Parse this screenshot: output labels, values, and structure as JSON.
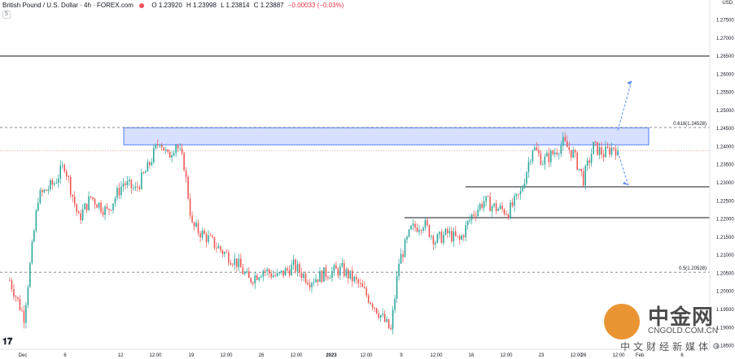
{
  "header": {
    "title": "British Pound / U.S. Dollar · 4h · FOREX.com",
    "open": "O 1.23920",
    "high": "H 1.23998",
    "low": "L 1.23814",
    "close": "C 1.23887",
    "change": "−0.00033 (−0.03%)",
    "sub_label": "5"
  },
  "currency_label": "USD",
  "watermark": {
    "brand": "中金网",
    "url": "CNGOLD.COM.CN",
    "tagline": "中文财经新媒体"
  },
  "colors": {
    "up": "#26a69a",
    "down": "#ef5350",
    "zone_fill": "#c9d6ff",
    "zone_stroke": "#2962ff",
    "line": "#131722",
    "dashed": "#787b86",
    "arrow": "#5b8def",
    "last_price": "#ef5350"
  },
  "chart_data": {
    "type": "candlestick",
    "title": "British Pound / U.S. Dollar · 4h · FOREX.com",
    "ylim": [
      1.184,
      1.2805
    ],
    "y_ticks": [
      "1.27500",
      "1.27000",
      "1.26500",
      "1.26000",
      "1.25500",
      "1.25000",
      "1.24500",
      "1.24000",
      "1.23500",
      "1.23000",
      "1.22500",
      "1.22000",
      "1.21500",
      "1.21000",
      "1.20500",
      "1.20000",
      "1.19500",
      "1.19000",
      "1.18500"
    ],
    "x_ticks": [
      "Dec",
      "6",
      "12",
      "12:00",
      "19",
      "12:00",
      "26",
      "12:00",
      "2023",
      "12:00",
      "9",
      "12:00",
      "16",
      "12:00",
      "23",
      "12:00",
      "26",
      "12:00",
      "Feb",
      "6"
    ],
    "levels": [
      {
        "price": 1.26501,
        "label": "1.26501",
        "style": "solid"
      },
      {
        "price": 1.22887,
        "label": "1.22887",
        "style": "solid"
      },
      {
        "price": 1.22035,
        "label": "1.22035",
        "style": "solid"
      }
    ],
    "fib_levels": [
      {
        "price": 1.24528,
        "label": "0.618(1.24528)"
      },
      {
        "price": 1.20528,
        "label": "0.5(1.20528)"
      }
    ],
    "last_price": {
      "price": 1.23887,
      "label": "1.23887"
    },
    "resistance_zone": {
      "from": 1.2405,
      "to": 1.2452
    },
    "anchors": [
      [
        0,
        1.203
      ],
      [
        7,
        1.193
      ],
      [
        14,
        1.226
      ],
      [
        22,
        1.23
      ],
      [
        27,
        1.235
      ],
      [
        34,
        1.22
      ],
      [
        40,
        1.226
      ],
      [
        48,
        1.222
      ],
      [
        56,
        1.23
      ],
      [
        62,
        1.228
      ],
      [
        68,
        1.234
      ],
      [
        74,
        1.242
      ],
      [
        78,
        1.237
      ],
      [
        82,
        1.241
      ],
      [
        86,
        1.235
      ],
      [
        90,
        1.218
      ],
      [
        97,
        1.215
      ],
      [
        105,
        1.211
      ],
      [
        112,
        1.208
      ],
      [
        118,
        1.203
      ],
      [
        125,
        1.206
      ],
      [
        132,
        1.204
      ],
      [
        140,
        1.207
      ],
      [
        148,
        1.203
      ],
      [
        156,
        1.205
      ],
      [
        164,
        1.206
      ],
      [
        172,
        1.202
      ],
      [
        180,
        1.196
      ],
      [
        188,
        1.189
      ],
      [
        192,
        1.208
      ],
      [
        198,
        1.217
      ],
      [
        204,
        1.219
      ],
      [
        210,
        1.214
      ],
      [
        216,
        1.216
      ],
      [
        222,
        1.214
      ],
      [
        228,
        1.221
      ],
      [
        234,
        1.225
      ],
      [
        240,
        1.223
      ],
      [
        246,
        1.222
      ],
      [
        252,
        1.227
      ],
      [
        258,
        1.24
      ],
      [
        263,
        1.236
      ],
      [
        268,
        1.238
      ],
      [
        273,
        1.241
      ],
      [
        278,
        1.238
      ],
      [
        283,
        1.231
      ],
      [
        288,
        1.24
      ],
      [
        293,
        1.238
      ],
      [
        298,
        1.2399
      ],
      [
        300,
        1.2389
      ]
    ],
    "candle_count": 301
  }
}
